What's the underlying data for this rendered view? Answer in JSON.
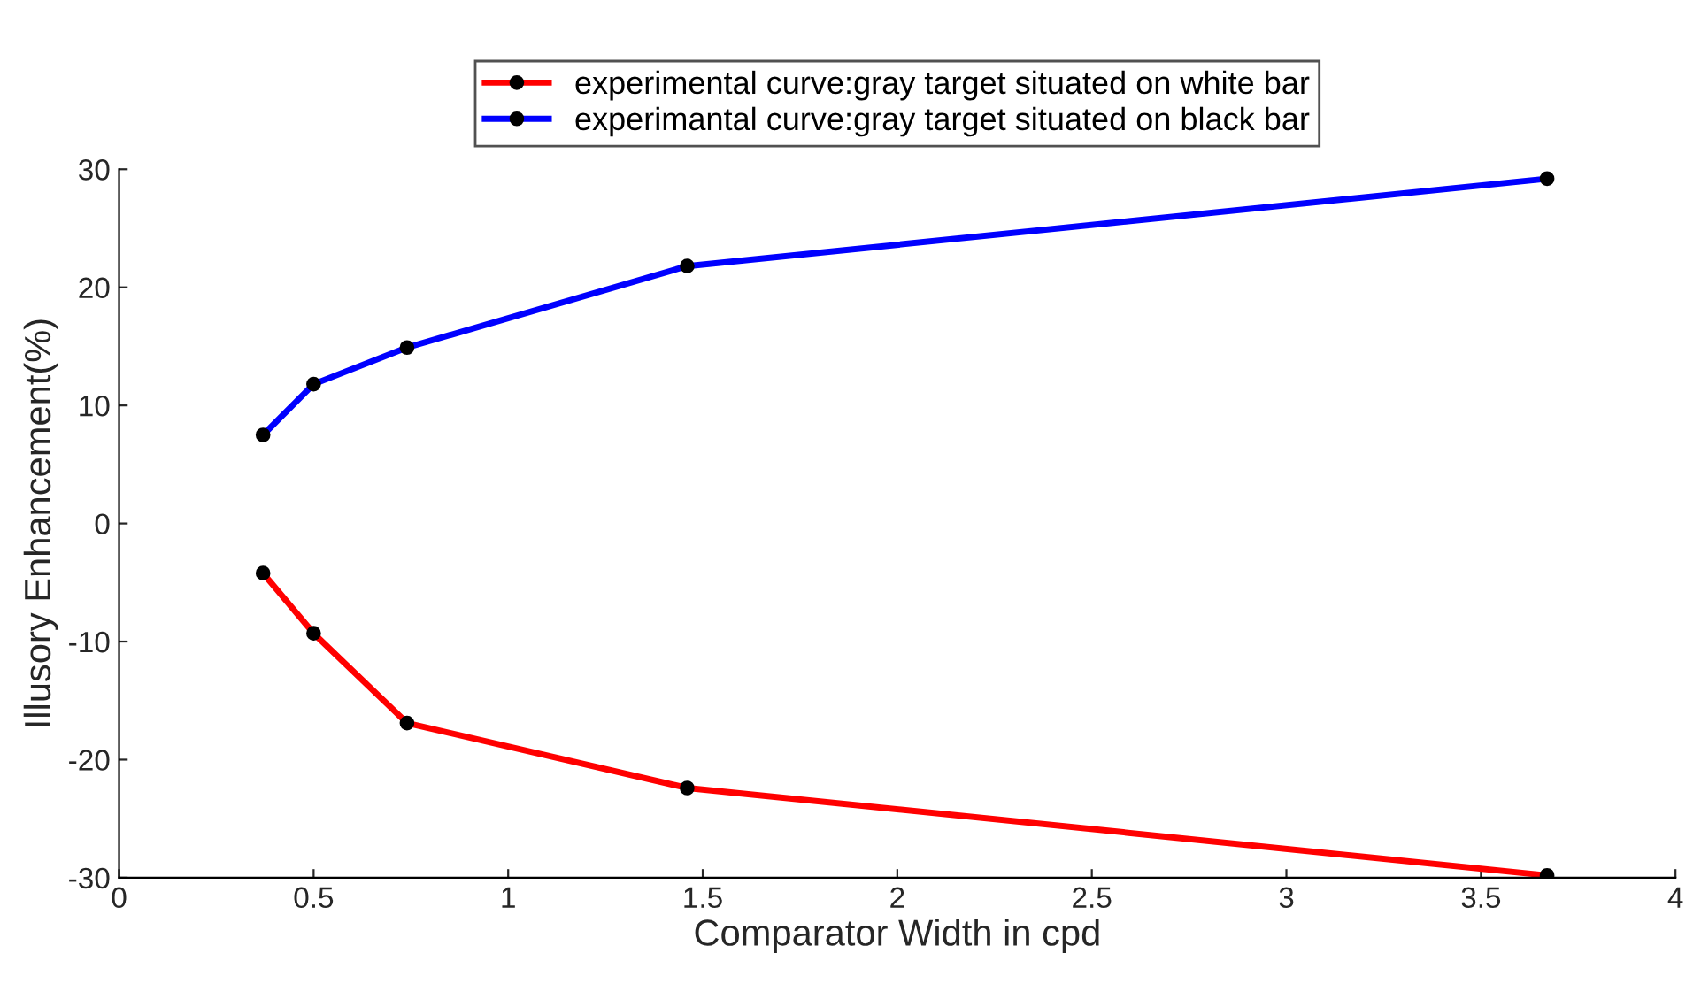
{
  "chart_data": {
    "type": "line",
    "xlabel": "Comparator Width in cpd",
    "ylabel": "Illusory Enhancement(%)",
    "x": [
      0.37,
      0.5,
      0.74,
      1.46,
      3.67
    ],
    "series": [
      {
        "name": "experimental curve:gray target situated on white bar",
        "color": "#ff0000",
        "values": [
          -4.2,
          -9.3,
          -16.9,
          -22.4,
          -29.8
        ]
      },
      {
        "name": "experimantal curve:gray target situated on black bar",
        "color": "#0000ff",
        "values": [
          7.5,
          11.8,
          14.9,
          21.8,
          29.2
        ]
      }
    ],
    "xlim": [
      0,
      4
    ],
    "xticks": [
      0,
      0.5,
      1,
      1.5,
      2,
      2.5,
      3,
      3.5,
      4
    ],
    "ylim": [
      -30,
      30
    ],
    "yticks": [
      -30,
      -20,
      -10,
      0,
      10,
      20,
      30
    ],
    "grid": false,
    "legend": "top",
    "marker": "circle",
    "line_style": "solid"
  }
}
